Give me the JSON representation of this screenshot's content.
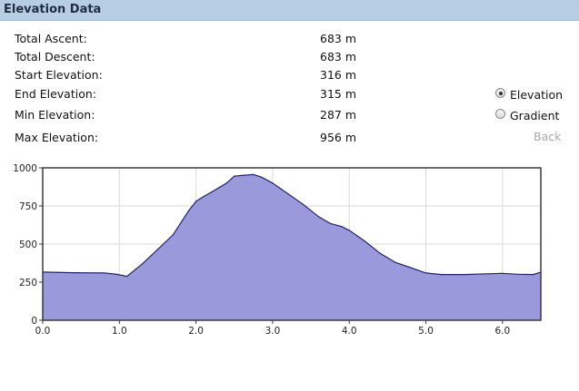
{
  "panel": {
    "title": "Elevation Data"
  },
  "stats": [
    {
      "label": "Total Ascent:",
      "value": "683 m"
    },
    {
      "label": "Total Descent:",
      "value": "683 m"
    },
    {
      "label": "Start Elevation:",
      "value": "316 m"
    },
    {
      "label": "End Elevation:",
      "value": "315 m"
    },
    {
      "label": "Min Elevation:",
      "value": "287 m"
    },
    {
      "label": "Max Elevation:",
      "value": "956 m"
    }
  ],
  "view_options": {
    "elevation_label": "Elevation",
    "gradient_label": "Gradient",
    "selected": "Elevation"
  },
  "back_label": "Back",
  "colors": {
    "header_bg": "#b7cde4",
    "area_fill": "#9a99db",
    "area_line": "#22227a",
    "back_disabled": "#a9a9a9"
  },
  "chart_data": {
    "type": "area",
    "title": "",
    "xlabel": "",
    "ylabel": "",
    "xlim": [
      0,
      6.5
    ],
    "ylim": [
      0,
      1000
    ],
    "grid": true,
    "x_ticks": [
      "0.0",
      "1.0",
      "2.0",
      "3.0",
      "4.0",
      "5.0",
      "6.0"
    ],
    "y_ticks": [
      "0",
      "250",
      "500",
      "750",
      "1000"
    ],
    "x": [
      0.0,
      0.4,
      0.8,
      0.95,
      1.1,
      1.3,
      1.5,
      1.7,
      1.9,
      2.0,
      2.1,
      2.2,
      2.3,
      2.4,
      2.5,
      2.6,
      2.75,
      2.85,
      3.0,
      3.2,
      3.4,
      3.6,
      3.75,
      3.9,
      4.0,
      4.2,
      4.4,
      4.6,
      4.8,
      5.0,
      5.2,
      5.5,
      6.0,
      6.2,
      6.4,
      6.5
    ],
    "y": [
      316,
      312,
      310,
      303,
      288,
      370,
      465,
      560,
      715,
      780,
      812,
      840,
      870,
      900,
      945,
      950,
      956,
      940,
      900,
      830,
      760,
      680,
      635,
      615,
      590,
      520,
      440,
      380,
      345,
      310,
      300,
      300,
      308,
      302,
      300,
      315
    ]
  }
}
